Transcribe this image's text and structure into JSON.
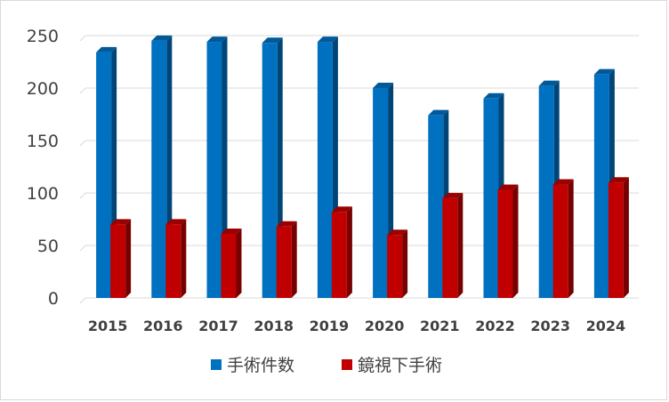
{
  "chart_data": {
    "type": "bar",
    "categories": [
      "2015",
      "2016",
      "2017",
      "2018",
      "2019",
      "2020",
      "2021",
      "2022",
      "2023",
      "2024"
    ],
    "series": [
      {
        "name": "手術件数",
        "values": [
          234,
          245,
          244,
          243,
          244,
          200,
          174,
          190,
          202,
          213
        ],
        "color": "#0070c0"
      },
      {
        "name": "鏡視下手術",
        "values": [
          70,
          70,
          61,
          68,
          82,
          60,
          95,
          103,
          108,
          110
        ],
        "color": "#c00000"
      }
    ],
    "ylim": [
      0,
      250
    ],
    "yticks": [
      "0",
      "50",
      "100",
      "150",
      "200",
      "250"
    ],
    "grid": true,
    "legend": "bottom",
    "style": "3d-bar"
  }
}
